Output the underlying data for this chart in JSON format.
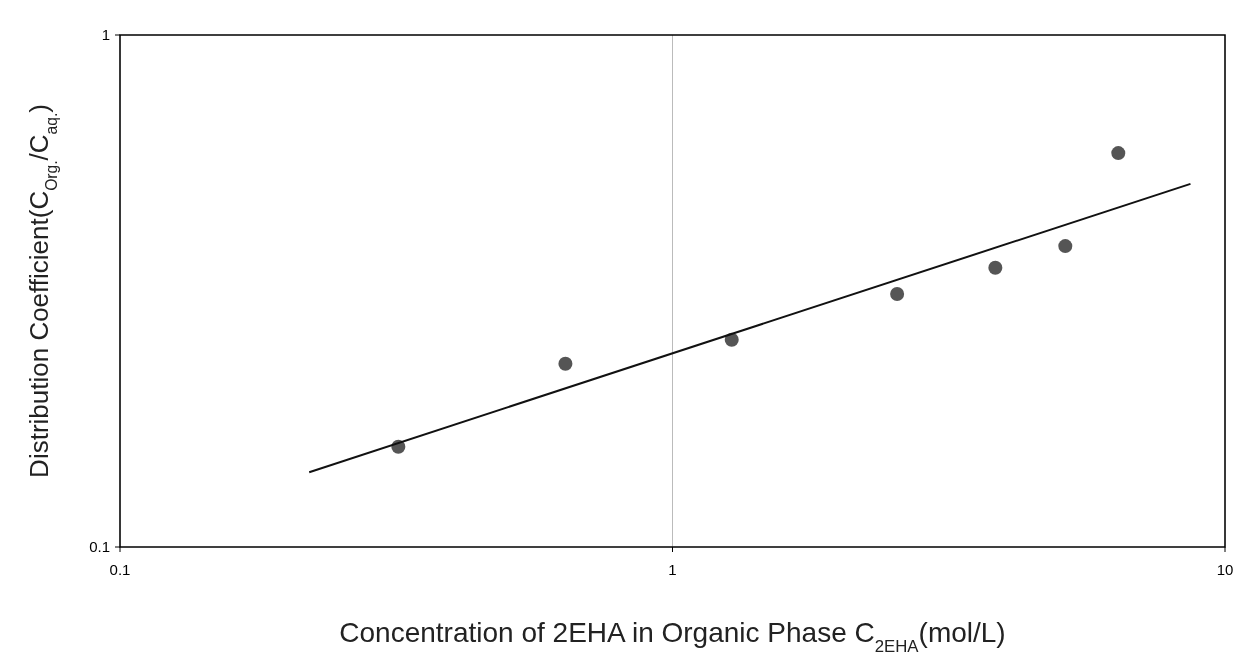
{
  "chart_data": {
    "type": "scatter",
    "xlabel": "Concentration of 2EHA in Organic Phase C$_{2EHA}$(mol/L)",
    "ylabel": "Distribution Coefficient(C$_{Org.}$/C$_{aq.}$)",
    "log": "xy",
    "xlim": [
      0.1,
      10
    ],
    "ylim": [
      0.1,
      1
    ],
    "xticks": [
      0.1,
      1,
      10
    ],
    "yticks": [
      0.1,
      1
    ],
    "grid": "x",
    "marker": "circle",
    "series": [
      {
        "color": "#555555",
        "x": [
          0.319,
          0.64,
          1.28,
          2.55,
          3.84,
          5.14,
          6.41
        ],
        "values": [
          0.157,
          0.228,
          0.254,
          0.312,
          0.351,
          0.387,
          0.588
        ]
      },
      {
        "type": "line",
        "color": "#111111",
        "marker": "none",
        "x": [
          0.22,
          8.66
        ],
        "values": [
          0.14,
          0.512
        ]
      }
    ]
  }
}
